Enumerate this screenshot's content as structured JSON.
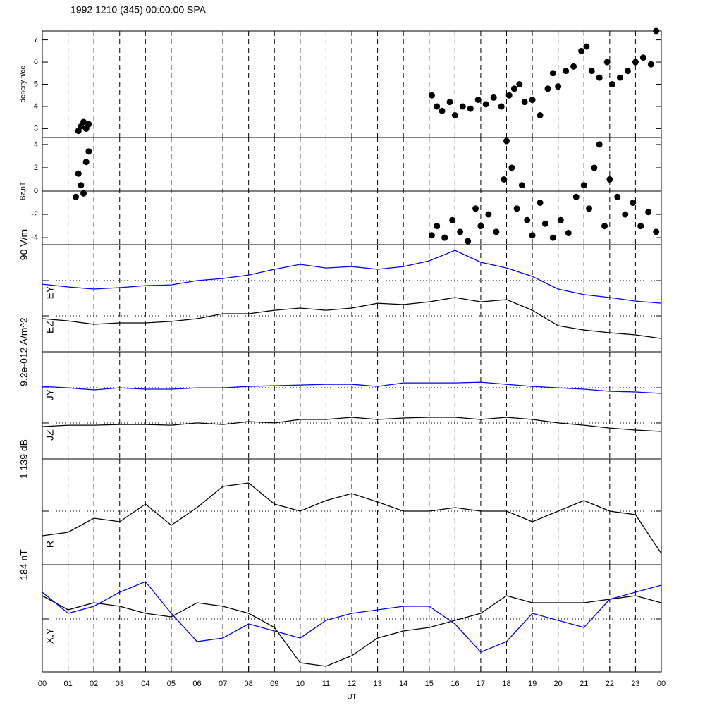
{
  "chart_data": [
    {
      "type": "scatter",
      "title": "1992 1210 (345) 00:00:00 SPA",
      "ylabel": "dencity,n/cc",
      "color": "#000000",
      "xlim": [
        0,
        24
      ],
      "ylim": [
        2.6,
        7.4
      ],
      "yticks": [
        3,
        4,
        5,
        6,
        7
      ],
      "x": [
        1.4,
        1.5,
        1.6,
        1.7,
        1.8,
        15.1,
        15.3,
        15.5,
        15.8,
        16.0,
        16.3,
        16.6,
        16.9,
        17.2,
        17.5,
        17.8,
        18.1,
        18.3,
        18.5,
        18.7,
        19.0,
        19.3,
        19.6,
        19.8,
        20.0,
        20.3,
        20.6,
        20.9,
        21.1,
        21.3,
        21.6,
        21.9,
        22.1,
        22.4,
        22.7,
        23.0,
        23.3,
        23.6,
        23.8
      ],
      "values": [
        2.9,
        3.1,
        3.3,
        3.0,
        3.2,
        4.5,
        4.0,
        3.8,
        4.2,
        3.6,
        4.0,
        3.9,
        4.3,
        4.1,
        4.4,
        4.0,
        4.5,
        4.8,
        5.0,
        4.2,
        4.3,
        3.6,
        4.8,
        5.5,
        4.9,
        5.6,
        5.8,
        6.5,
        6.7,
        5.6,
        5.3,
        6.0,
        5.0,
        5.3,
        5.6,
        6.0,
        6.2,
        5.9,
        7.4
      ]
    },
    {
      "type": "scatter",
      "ylabel": "Bz,nT",
      "color": "#000000",
      "zero_line": true,
      "xlim": [
        0,
        24
      ],
      "ylim": [
        -4.6,
        4.6
      ],
      "yticks": [
        -4,
        -2,
        0,
        2,
        4
      ],
      "x": [
        1.3,
        1.4,
        1.5,
        1.6,
        1.7,
        1.8,
        15.1,
        15.3,
        15.6,
        15.9,
        16.2,
        16.5,
        16.8,
        17.0,
        17.3,
        17.6,
        17.9,
        18.0,
        18.2,
        18.4,
        18.6,
        18.8,
        19.0,
        19.3,
        19.5,
        19.8,
        20.1,
        20.4,
        20.7,
        21.0,
        21.2,
        21.4,
        21.6,
        21.8,
        22.0,
        22.3,
        22.6,
        22.9,
        23.2,
        23.5,
        23.8
      ],
      "values": [
        -0.5,
        1.5,
        0.5,
        -0.2,
        2.5,
        3.4,
        -3.8,
        -3.0,
        -4.0,
        -2.5,
        -3.5,
        -4.3,
        -1.5,
        -3.0,
        -2.0,
        -3.5,
        1.0,
        4.3,
        2.0,
        -1.5,
        0.5,
        -2.5,
        -3.8,
        -1.0,
        -2.8,
        -4.0,
        -2.5,
        -3.6,
        -0.5,
        0.5,
        -1.5,
        2.0,
        4.0,
        -3.0,
        1.0,
        -0.5,
        -2.0,
        -1.0,
        -3.0,
        -1.8,
        -3.5
      ]
    },
    {
      "type": "line",
      "scale_label": "90 V/m",
      "xlim": [
        0,
        24
      ],
      "ylim": [
        0,
        90
      ],
      "reference_lines": [
        59.8,
        30.2
      ],
      "x": [
        0,
        1,
        2,
        3,
        4,
        5,
        6,
        7,
        8,
        9,
        10,
        11,
        12,
        13,
        14,
        15,
        16,
        17,
        18,
        19,
        20,
        21,
        22,
        23,
        24
      ],
      "series": [
        {
          "name": "EY",
          "color": "#0000ff",
          "values": [
            56.8,
            54.5,
            52.7,
            53.9,
            55.6,
            56.2,
            59.8,
            61.6,
            64.5,
            69.3,
            73.4,
            70.4,
            71.6,
            69.3,
            71.6,
            76.4,
            85.2,
            75.2,
            70.4,
            63.3,
            52.7,
            48.0,
            45.6,
            42.6,
            40.8
          ]
        },
        {
          "name": "EZ",
          "color": "#000000",
          "values": [
            27.8,
            26.0,
            23.1,
            24.3,
            24.3,
            25.5,
            27.8,
            32.0,
            32.0,
            34.9,
            36.7,
            34.9,
            36.7,
            40.8,
            39.7,
            42.0,
            45.6,
            42.0,
            43.8,
            34.9,
            21.9,
            18.3,
            16.0,
            14.2,
            11.2
          ]
        }
      ]
    },
    {
      "type": "line",
      "scale_label": "9.2e-012 A/m^2",
      "xlim": [
        0,
        24
      ],
      "ylim": [
        0,
        9.2
      ],
      "reference_lines": [
        6.11,
        3.09
      ],
      "x": [
        0,
        1,
        2,
        3,
        4,
        5,
        6,
        7,
        8,
        9,
        10,
        11,
        12,
        13,
        14,
        15,
        16,
        17,
        18,
        19,
        20,
        21,
        22,
        23,
        24
      ],
      "series": [
        {
          "name": "JY",
          "color": "#0000ff",
          "values": [
            6.23,
            6.11,
            5.93,
            6.11,
            5.99,
            5.99,
            6.11,
            6.11,
            6.23,
            6.29,
            6.35,
            6.41,
            6.41,
            6.23,
            6.53,
            6.53,
            6.53,
            6.59,
            6.41,
            6.23,
            6.11,
            5.99,
            5.81,
            5.75,
            5.63
          ]
        },
        {
          "name": "JZ",
          "color": "#000000",
          "values": [
            2.78,
            2.9,
            2.9,
            2.96,
            2.96,
            2.9,
            3.09,
            2.96,
            3.21,
            3.09,
            3.39,
            3.39,
            3.57,
            3.39,
            3.51,
            3.57,
            3.57,
            3.39,
            3.57,
            3.39,
            3.09,
            2.9,
            2.66,
            2.48,
            2.36
          ]
        }
      ]
    },
    {
      "type": "line",
      "scale_label": "1.139 dB",
      "xlim": [
        0,
        24
      ],
      "ylim": [
        0,
        1.139
      ],
      "reference_lines": [
        0.577
      ],
      "x": [
        0,
        1,
        2,
        3,
        4,
        5,
        6,
        7,
        8,
        9,
        10,
        11,
        12,
        13,
        14,
        15,
        16,
        17,
        18,
        19,
        20,
        21,
        22,
        23,
        24
      ],
      "series": [
        {
          "name": "R",
          "color": "#000000",
          "values": [
            0.311,
            0.349,
            0.501,
            0.463,
            0.653,
            0.425,
            0.615,
            0.843,
            0.881,
            0.653,
            0.577,
            0.691,
            0.767,
            0.676,
            0.577,
            0.577,
            0.615,
            0.577,
            0.577,
            0.463,
            0.577,
            0.691,
            0.577,
            0.539,
            0.121
          ]
        }
      ]
    },
    {
      "type": "line",
      "scale_label": "184 nT",
      "label": "X,Y",
      "xlim": [
        0,
        24
      ],
      "ylim": [
        0,
        184
      ],
      "reference_lines": [
        90.8
      ],
      "x": [
        0,
        1,
        2,
        3,
        4,
        5,
        6,
        7,
        8,
        9,
        10,
        11,
        12,
        13,
        14,
        15,
        16,
        17,
        18,
        19,
        20,
        21,
        22,
        23,
        24
      ],
      "series": [
        {
          "color": "#000000",
          "values": [
            130.7,
            106.5,
            118.6,
            112.6,
            100.5,
            94.4,
            118.6,
            112.6,
            100.5,
            76.3,
            15.7,
            9.7,
            27.8,
            58.1,
            70.2,
            76.3,
            88.4,
            100.5,
            130.7,
            118.6,
            118.6,
            118.6,
            124.7,
            130.7,
            118.6
          ]
        },
        {
          "color": "#0000ff",
          "values": [
            136.8,
            100.5,
            112.6,
            136.8,
            154.9,
            100.5,
            52.1,
            58.1,
            82.3,
            70.2,
            58.1,
            88.4,
            100.5,
            106.5,
            112.6,
            112.6,
            82.3,
            33.9,
            52.1,
            100.5,
            88.4,
            76.3,
            124.7,
            136.8,
            148.9
          ]
        }
      ],
      "xlabel": "UT",
      "xticks": [
        {
          "value": 0,
          "label": "00"
        },
        {
          "value": 1,
          "label": "01"
        },
        {
          "value": 2,
          "label": "02"
        },
        {
          "value": 3,
          "label": "03"
        },
        {
          "value": 4,
          "label": "04"
        },
        {
          "value": 5,
          "label": "05"
        },
        {
          "value": 6,
          "label": "06"
        },
        {
          "value": 7,
          "label": "07"
        },
        {
          "value": 8,
          "label": "08"
        },
        {
          "value": 9,
          "label": "09"
        },
        {
          "value": 10,
          "label": "10"
        },
        {
          "value": 11,
          "label": "11"
        },
        {
          "value": 12,
          "label": "12"
        },
        {
          "value": 13,
          "label": "13"
        },
        {
          "value": 14,
          "label": "14"
        },
        {
          "value": 15,
          "label": "15"
        },
        {
          "value": 16,
          "label": "16"
        },
        {
          "value": 17,
          "label": "17"
        },
        {
          "value": 18,
          "label": "18"
        },
        {
          "value": 19,
          "label": "19"
        },
        {
          "value": 20,
          "label": "20"
        },
        {
          "value": 21,
          "label": "21"
        },
        {
          "value": 22,
          "label": "22"
        },
        {
          "value": 23,
          "label": "23"
        },
        {
          "value": 24,
          "label": "00"
        }
      ]
    }
  ]
}
